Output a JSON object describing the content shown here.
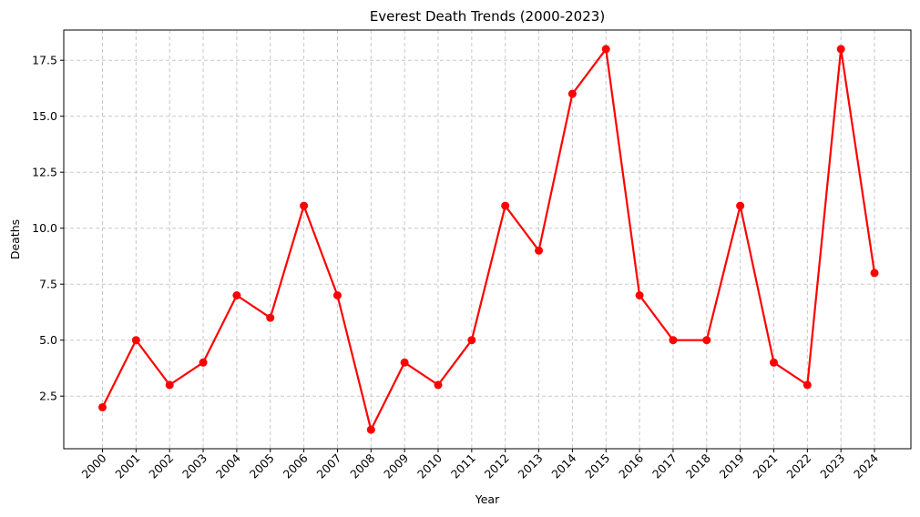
{
  "chart_data": {
    "type": "line",
    "title": "Everest Death Trends (2000-2023)",
    "xlabel": "Year",
    "ylabel": "Deaths",
    "categories": [
      "2000",
      "2001",
      "2002",
      "2003",
      "2004",
      "2005",
      "2006",
      "2007",
      "2008",
      "2009",
      "2010",
      "2011",
      "2012",
      "2013",
      "2014",
      "2015",
      "2016",
      "2017",
      "2018",
      "2019",
      "2021",
      "2022",
      "2023",
      "2024"
    ],
    "series": [
      {
        "values": [
          2,
          5,
          3,
          4,
          7,
          6,
          11,
          7,
          1,
          4,
          3,
          5,
          11,
          9,
          16,
          18,
          7,
          5,
          5,
          11,
          4,
          3,
          18,
          8
        ],
        "color": "#ff0000",
        "marker": "circle"
      }
    ],
    "ylim": [
      0.15,
      18.85
    ],
    "yticks": [
      2.5,
      5.0,
      7.5,
      10.0,
      12.5,
      15.0,
      17.5
    ],
    "yticklabels": [
      "2.5",
      "5.0",
      "7.5",
      "10.0",
      "12.5",
      "15.0",
      "17.5"
    ],
    "grid": true,
    "grid_style": "dashed",
    "x_tick_rotation": 45
  }
}
